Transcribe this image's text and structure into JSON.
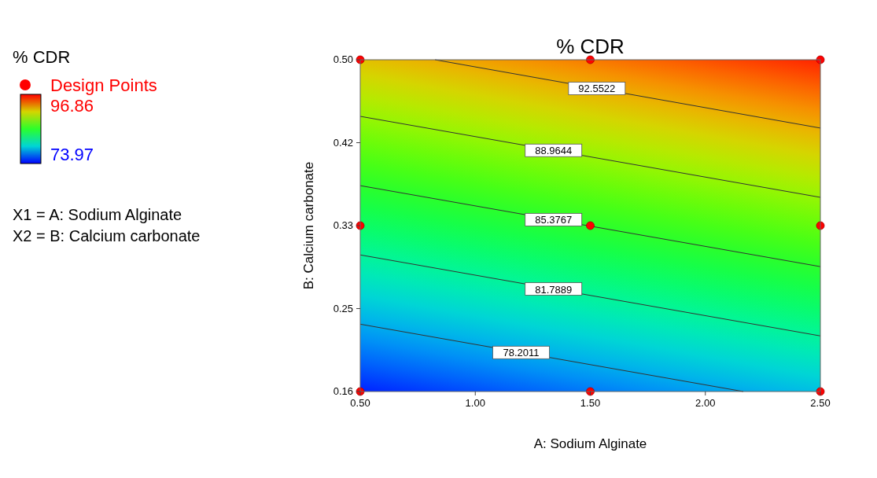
{
  "chart_data": {
    "type": "line",
    "title": "% CDR",
    "xlabel": "A: Sodium Alginate",
    "ylabel": "B: Calcium carbonate",
    "legend_title": "% CDR",
    "legend": "top left",
    "xlim": [
      0.5,
      2.5
    ],
    "xticks": [
      {
        "value": 0.5,
        "label": "0.50"
      },
      {
        "value": 1.0,
        "label": "1.00"
      },
      {
        "value": 1.5,
        "label": "1.50"
      },
      {
        "value": 2.0,
        "label": "2.00"
      },
      {
        "value": 2.5,
        "label": "2.50"
      }
    ],
    "ylim": [
      0.16,
      0.5
    ],
    "yticks": [
      {
        "value": 0.16,
        "label": "0.16"
      },
      {
        "value": 0.245,
        "label": "0.25"
      },
      {
        "value": 0.33,
        "label": "0.33"
      },
      {
        "value": 0.415,
        "label": "0.42"
      },
      {
        "value": 0.5,
        "label": "0.50"
      }
    ],
    "clim": [
      73.97,
      96.86
    ],
    "cticks": [
      73.97,
      96.86
    ],
    "annotations": [
      "X1 = A: Sodium Alginate",
      "X2 = B: Calcium carbonate"
    ],
    "series": [
      {
        "name": "92.5522",
        "color": "#333333",
        "x": [
          0.825,
          2.5
        ],
        "values": [
          0.5,
          0.43
        ]
      },
      {
        "name": "88.9644",
        "color": "#333333",
        "x": [
          0.5,
          2.5
        ],
        "values": [
          0.442,
          0.359
        ]
      },
      {
        "name": "85.3767",
        "color": "#333333",
        "x": [
          0.5,
          2.5
        ],
        "values": [
          0.371,
          0.288
        ]
      },
      {
        "name": "81.7889",
        "color": "#333333",
        "x": [
          0.5,
          2.5
        ],
        "values": [
          0.3,
          0.217
        ]
      },
      {
        "name": "78.2011",
        "color": "#333333",
        "x": [
          0.5,
          2.165
        ],
        "values": [
          0.229,
          0.16
        ]
      },
      {
        "name": "Design Points",
        "type": "scatter",
        "marker": "circle",
        "color": "#ff0000",
        "x": [
          0.5,
          1.5,
          2.5,
          0.5,
          1.5,
          2.5,
          0.5,
          1.5,
          2.5
        ],
        "values": [
          0.5,
          0.5,
          0.5,
          0.33,
          0.33,
          0.33,
          0.16,
          0.16,
          0.16
        ]
      }
    ]
  }
}
